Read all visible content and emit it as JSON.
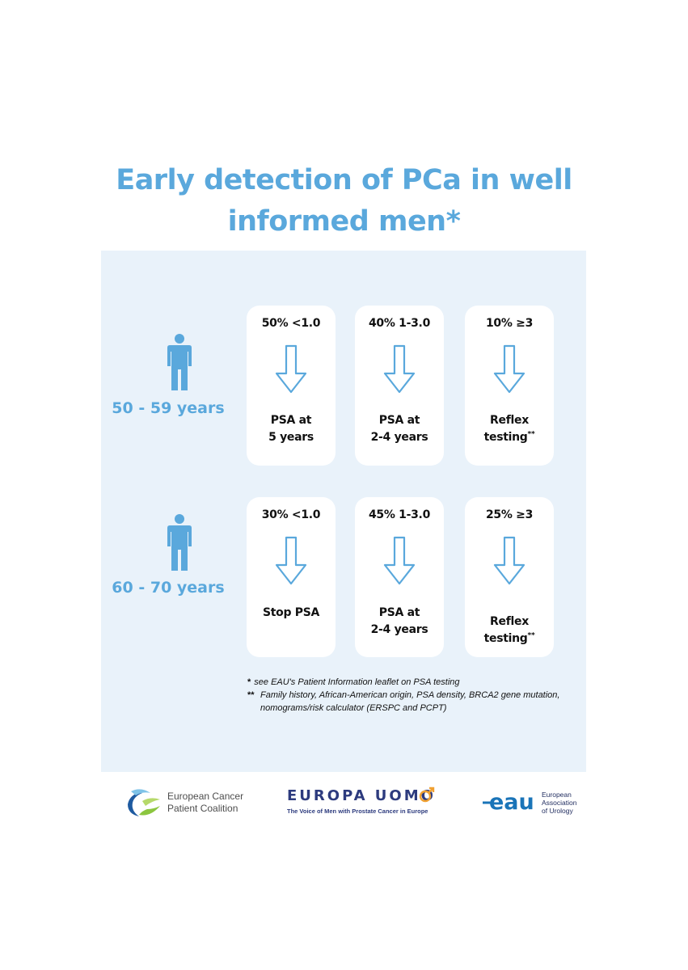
{
  "title_lines": [
    "Early detection of PCa in well",
    "informed men*"
  ],
  "groups": [
    {
      "age": "50 - 59 years",
      "cards": [
        {
          "pct": "50% <1.0",
          "action_lines": [
            "PSA at",
            "5 years"
          ],
          "sup": ""
        },
        {
          "pct": "40% 1-3.0",
          "action_lines": [
            "PSA at",
            "2-4 years"
          ],
          "sup": ""
        },
        {
          "pct": "10% ≥3",
          "action_lines": [
            "Reflex",
            "testing"
          ],
          "sup": "**"
        }
      ]
    },
    {
      "age": "60 - 70 years",
      "cards": [
        {
          "pct": "30% <1.0",
          "action_lines": [
            "Stop PSA"
          ],
          "sup": ""
        },
        {
          "pct": "45% 1-3.0",
          "action_lines": [
            "PSA at",
            "2-4 years"
          ],
          "sup": ""
        },
        {
          "pct": "25% ≥3",
          "action_lines": [
            "Reflex",
            "testing"
          ],
          "sup": "**"
        }
      ]
    }
  ],
  "notes": {
    "note1_mark": "*",
    "note1": "see EAU's Patient Information leaflet on PSA testing",
    "note2_mark": "**",
    "note2_line1": "Family history, African-American origin, PSA density, BRCA2 gene mutation,",
    "note2_line2": "nomograms/risk calculator (ERSPC and PCPT)"
  },
  "logos": {
    "ecpc_line1": "European Cancer",
    "ecpc_line2": "Patient Coalition",
    "europa_uomo": "EUROPA UOMO",
    "europa_uomo_tagline": "The Voice of Men with Prostate Cancer in Europe",
    "eau_mark": "eau",
    "eau_line1": "European",
    "eau_line2": "Association",
    "eau_line3": "of Urology"
  },
  "colors": {
    "accent": "#5aa8dc",
    "panel": "#e9f2fa",
    "europa_navy": "#2d3b7e",
    "europa_orange": "#f0a030"
  }
}
